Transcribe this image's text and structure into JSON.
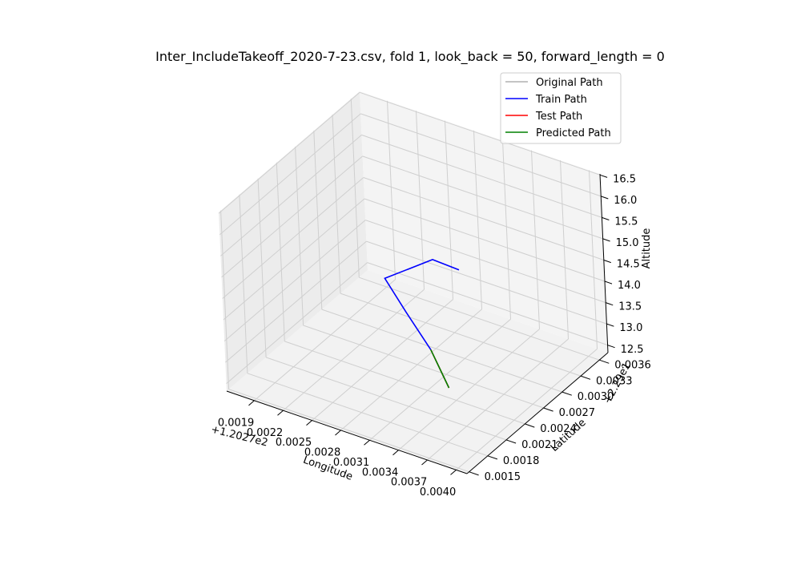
{
  "chart_data": {
    "type": "line3d",
    "title": "Inter_IncludeTakeoff_2020-7-23.csv, fold 1, look_back = 50, forward_length = 0",
    "xlabel": "Longitude",
    "ylabel": "Latitude",
    "zlabel": "Altitude",
    "x_offset_label": "+1.2027e2",
    "y_offset_label": "+2.29e1",
    "x_ticks": [
      "0.0019",
      "0.0022",
      "0.0025",
      "0.0028",
      "0.0031",
      "0.0034",
      "0.0037",
      "0.0040"
    ],
    "y_ticks": [
      "0.0015",
      "0.0018",
      "0.0021",
      "0.0024",
      "0.0027",
      "0.0030",
      "0.0033",
      "0.0036"
    ],
    "z_ticks": [
      "12.5",
      "13.0",
      "13.5",
      "14.0",
      "14.5",
      "15.0",
      "15.5",
      "16.0",
      "16.5"
    ],
    "grid": true,
    "legend_position": "top-right",
    "series": [
      {
        "name": "Original Path",
        "color": "#b0b0b0",
        "points": []
      },
      {
        "name": "Train Path",
        "color": "#0000ff",
        "points": [
          [
            0.0031,
            0.003,
            14.5
          ],
          [
            0.0029,
            0.0029,
            14.7
          ],
          [
            0.0026,
            0.0026,
            14.4
          ],
          [
            0.003,
            0.0023,
            14.3
          ],
          [
            0.0033,
            0.0022,
            13.8
          ]
        ]
      },
      {
        "name": "Test Path",
        "color": "#ff0000",
        "points": [
          [
            0.0033,
            0.0022,
            13.8
          ],
          [
            0.0036,
            0.002,
            13.4
          ]
        ]
      },
      {
        "name": "Predicted Path",
        "color": "#008000",
        "points": [
          [
            0.0033,
            0.0022,
            13.8
          ],
          [
            0.0036,
            0.002,
            13.4
          ]
        ]
      }
    ]
  }
}
